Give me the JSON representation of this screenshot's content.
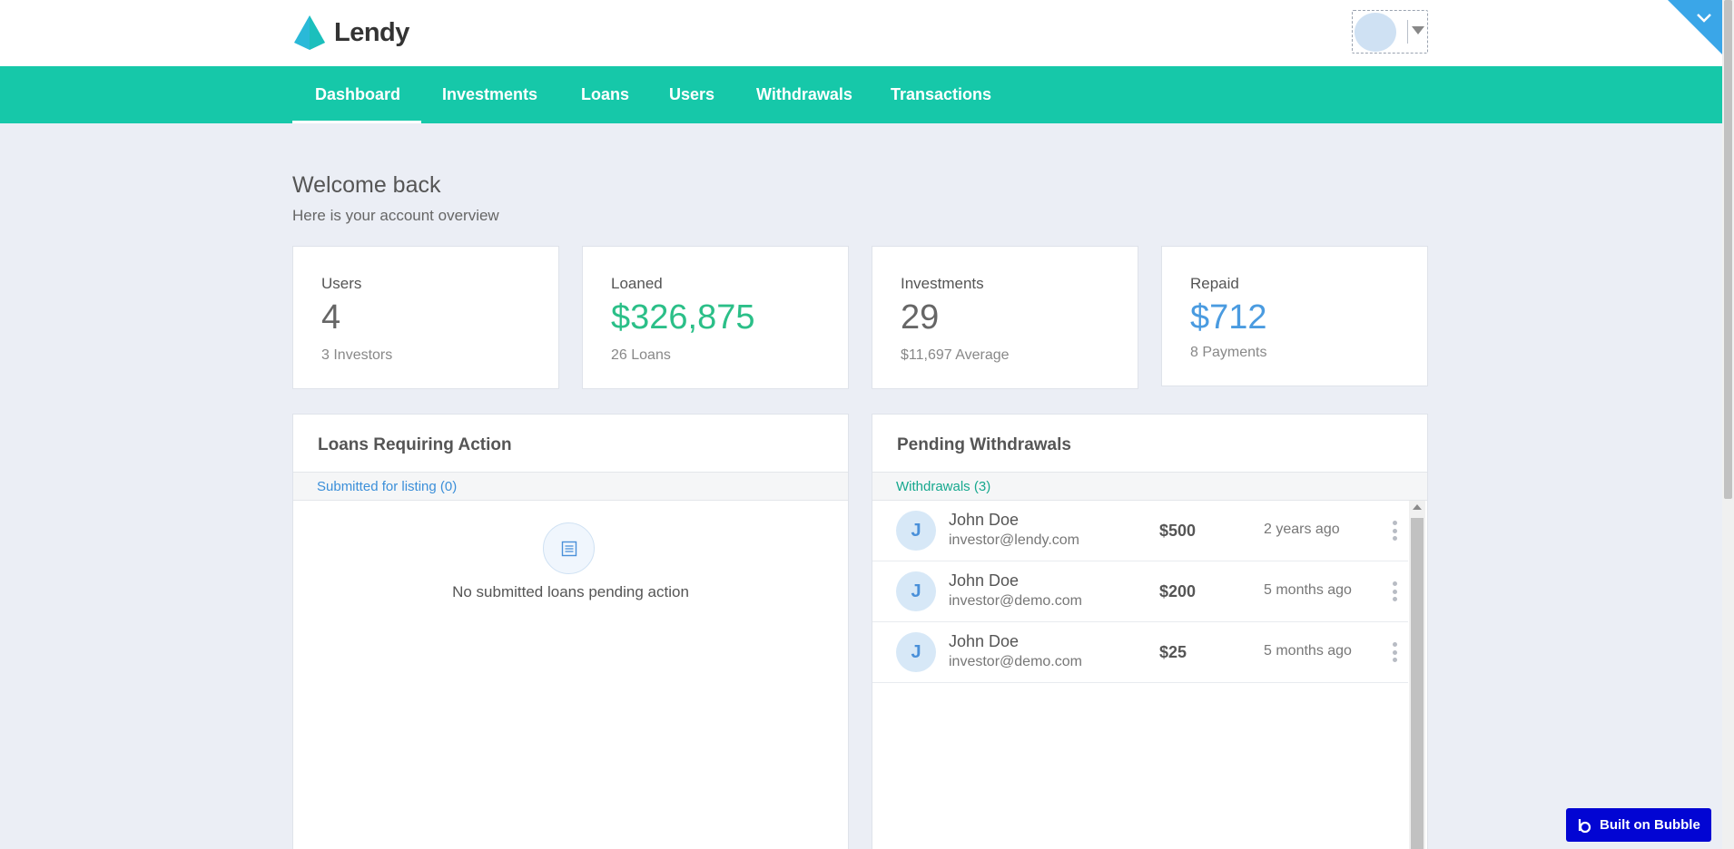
{
  "header": {
    "brand": "Lendy",
    "logo_colors": [
      "#2ab9d8",
      "#16c8a9"
    ]
  },
  "nav": {
    "items": [
      "Dashboard",
      "Investments",
      "Loans",
      "Users",
      "Withdrawals",
      "Transactions"
    ],
    "active_item": "Dashboard",
    "bar_color": "#16c8a9"
  },
  "welcome": {
    "title": "Welcome back",
    "subtitle": "Here is your account overview"
  },
  "stats": [
    {
      "label": "Users",
      "value": "4",
      "sub": "3 Investors",
      "value_color": "#666666"
    },
    {
      "label": "Loaned",
      "value": "$326,875",
      "sub": "26 Loans",
      "value_color": "#2bbf88"
    },
    {
      "label": "Investments",
      "value": "29",
      "sub": "$11,697 Average",
      "value_color": "#666666"
    },
    {
      "label": "Repaid",
      "value": "$712",
      "sub": "8 Payments",
      "value_color": "#4a9be0"
    }
  ],
  "loans_panel": {
    "title": "Loans Requiring Action",
    "strip_label": "Submitted for listing (0)",
    "strip_color": "#3b8fd9",
    "empty_icon": "list-icon",
    "empty_text": "No submitted loans pending action"
  },
  "withdrawals_panel": {
    "title": "Pending Withdrawals",
    "strip_label": "Withdrawals (3)",
    "strip_color": "#16a88e",
    "rows": [
      {
        "initial": "J",
        "name": "John Doe",
        "email": "investor@lendy.com",
        "amount": "$500",
        "time": "2 years ago"
      },
      {
        "initial": "J",
        "name": "John Doe",
        "email": "investor@demo.com",
        "amount": "$200",
        "time": "5 months ago"
      },
      {
        "initial": "J",
        "name": "John Doe",
        "email": "investor@demo.com",
        "amount": "$25",
        "time": "5 months ago"
      }
    ]
  },
  "badge": {
    "label": "Built on Bubble",
    "color": "#0205d3"
  }
}
